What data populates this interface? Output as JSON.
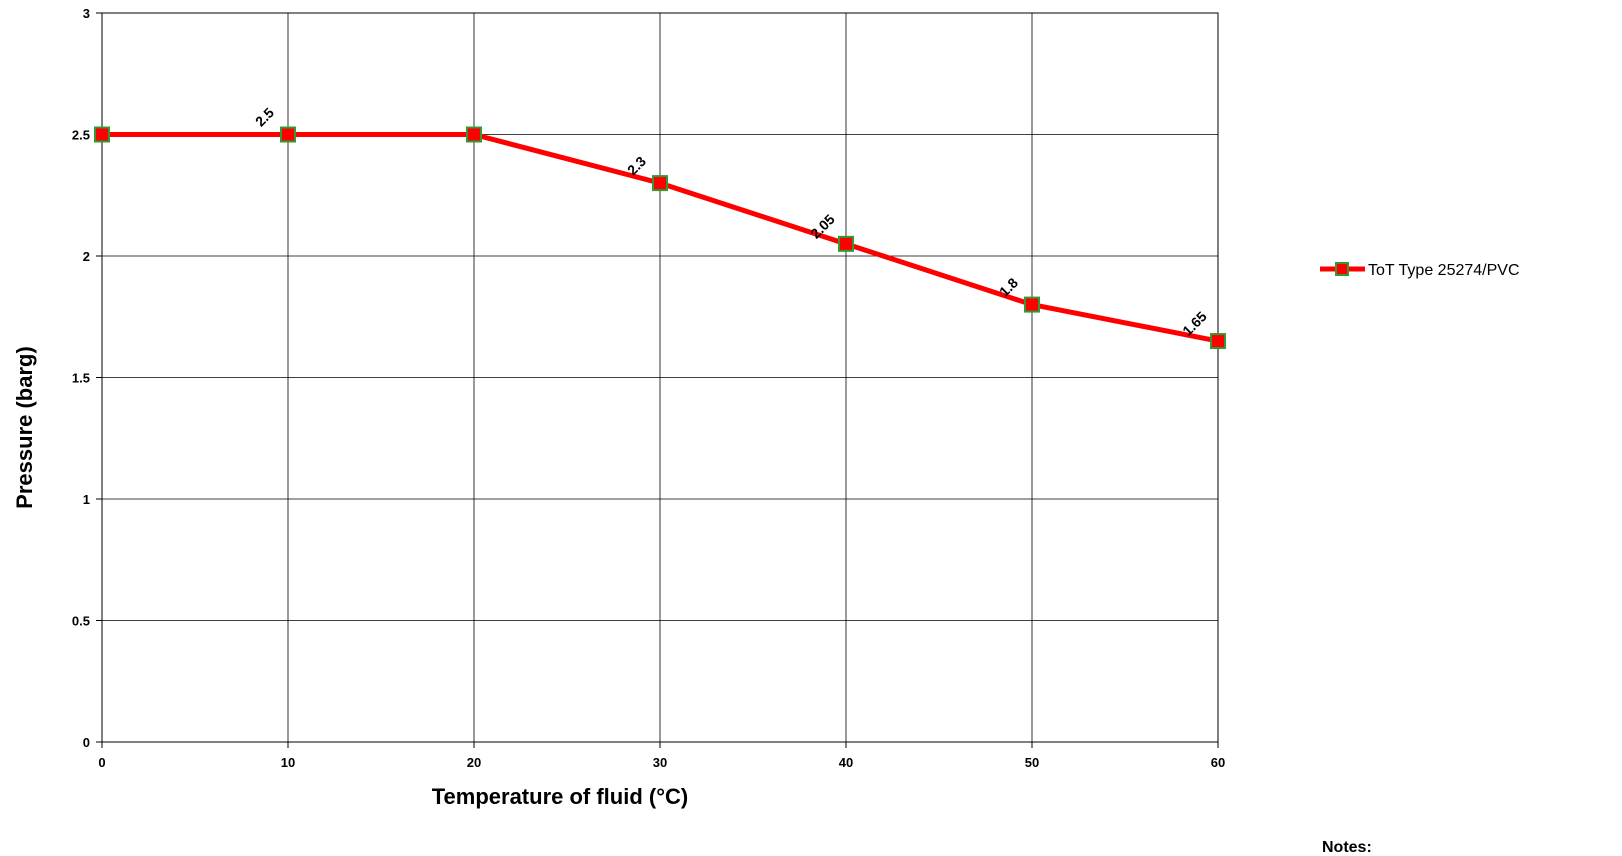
{
  "chart_data": {
    "type": "line",
    "title": "",
    "xlabel": "Temperature of fluid (°C)",
    "ylabel": "Pressure (barg)",
    "xlim": [
      0,
      60
    ],
    "ylim": [
      0,
      3
    ],
    "x_ticks": [
      "0",
      "10",
      "20",
      "30",
      "40",
      "50",
      "60"
    ],
    "y_ticks": [
      "0",
      "0.5",
      "1",
      "1.5",
      "2",
      "2.5",
      "3"
    ],
    "grid": true,
    "legend_position": "right",
    "series": [
      {
        "name": "ToT Type 25274/PVC",
        "color": "#ff0000",
        "marker_color": "#ff0000",
        "marker_edge_color": "#339933",
        "x": [
          0,
          10,
          20,
          30,
          40,
          50,
          60
        ],
        "values": [
          2.5,
          2.5,
          2.5,
          2.3,
          2.05,
          1.8,
          1.65
        ],
        "data_labels": [
          {
            "index": 1,
            "text": "2.5"
          },
          {
            "index": 3,
            "text": "2.3"
          },
          {
            "index": 4,
            "text": "2.05"
          },
          {
            "index": 5,
            "text": "1.8"
          },
          {
            "index": 6,
            "text": "1.65"
          }
        ]
      }
    ]
  },
  "notes": {
    "label": "Notes:"
  }
}
